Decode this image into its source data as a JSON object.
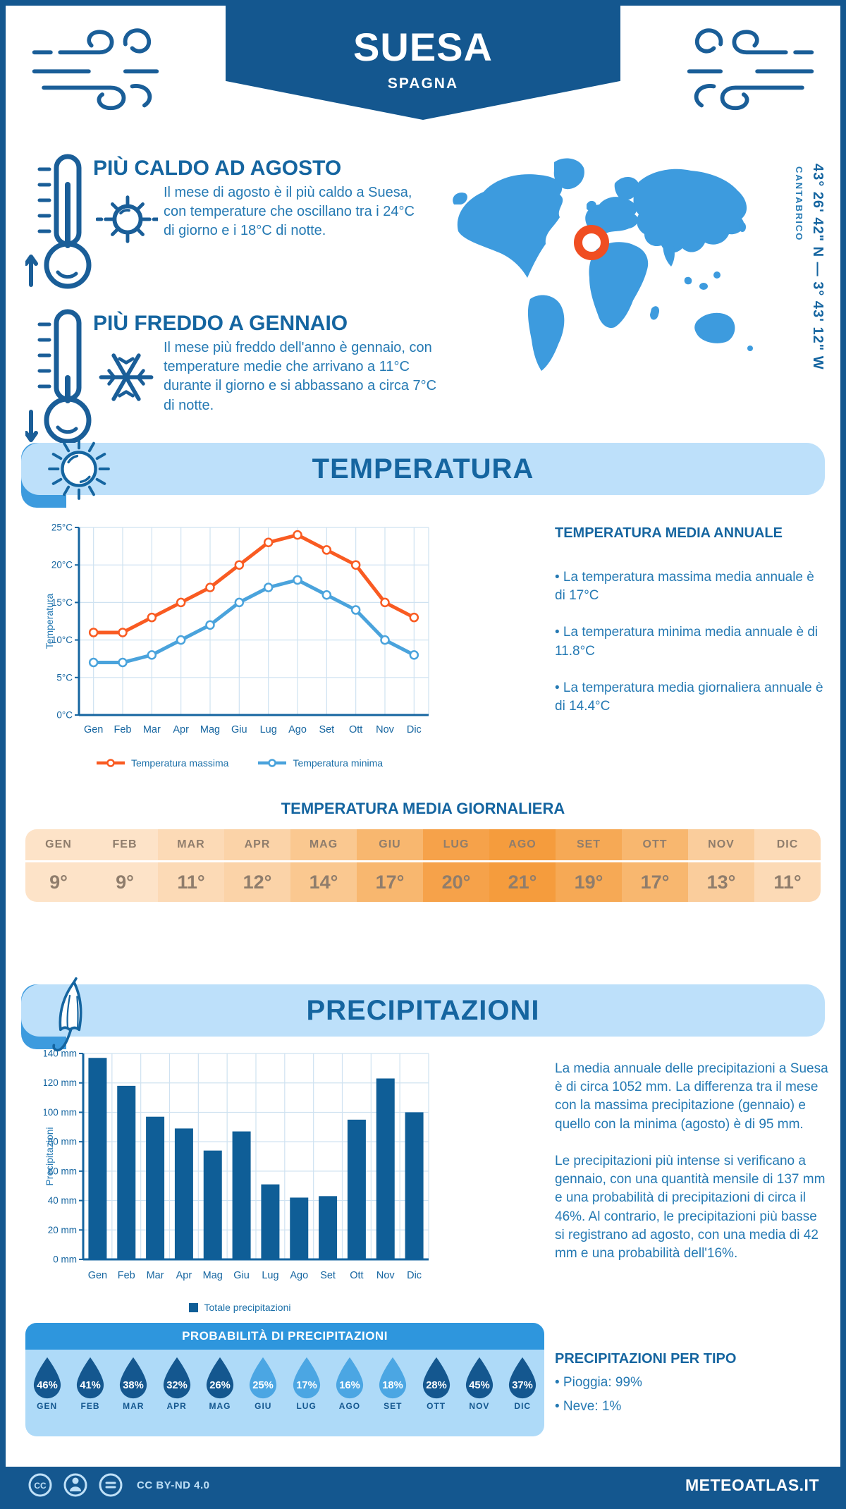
{
  "header": {
    "title": "SUESA",
    "subtitle": "SPAGNA"
  },
  "highlights": {
    "hot": {
      "title": "PIÙ CALDO AD AGOSTO",
      "text": "Il mese di agosto è il più caldo a Suesa, con temperature che oscillano tra i 24°C di giorno e i 18°C di notte."
    },
    "cold": {
      "title": "PIÙ FREDDO A GENNAIO",
      "text": "Il mese più freddo dell'anno è gennaio, con temperature medie che arrivano a 11°C durante il giorno e si abbassano a circa 7°C di notte."
    }
  },
  "map": {
    "region": "CANTABRICO",
    "coordinates": "43° 26' 42\" N — 3° 43' 12\" W",
    "land_color": "#3D9BDE",
    "marker_color": "#F04E22"
  },
  "temperature_section": {
    "banner": "TEMPERATURA",
    "annual_title": "TEMPERATURA MEDIA ANNUALE",
    "annual_bullets": [
      "• La temperatura massima media annuale è di 17°C",
      "• La temperatura minima media annuale è di 11.8°C",
      "• La temperatura media giornaliera annuale è di 14.4°C"
    ],
    "daily_title": "TEMPERATURA MEDIA GIORNALIERA",
    "daily_table": {
      "months": [
        "GEN",
        "FEB",
        "MAR",
        "APR",
        "MAG",
        "GIU",
        "LUG",
        "AGO",
        "SET",
        "OTT",
        "NOV",
        "DIC"
      ],
      "values": [
        "9°",
        "9°",
        "11°",
        "12°",
        "14°",
        "17°",
        "20°",
        "21°",
        "19°",
        "17°",
        "13°",
        "11°"
      ],
      "colors": [
        "#FDE3C8",
        "#FDE3C8",
        "#FCDAB6",
        "#FBD3A8",
        "#FAC890",
        "#F8B76F",
        "#F6A24A",
        "#F59C3D",
        "#F6A955",
        "#F8B76F",
        "#FACD9C",
        "#FCDAB6"
      ]
    }
  },
  "precipitation_section": {
    "banner": "PRECIPITAZIONI",
    "paragraphs": [
      "La media annuale delle precipitazioni a Suesa è di circa 1052 mm. La differenza tra il mese con la massima precipitazione (gennaio) e quello con la minima (agosto) è di 95 mm.",
      "Le precipitazioni più intense si verificano a gennaio, con una quantità mensile di 137 mm e una probabilità di precipitazioni di circa il 46%. Al contrario, le precipitazioni più basse si registrano ad agosto, con una media di 42 mm e una probabilità dell'16%."
    ],
    "probability": {
      "title": "PROBABILITÀ DI PRECIPITAZIONI",
      "months": [
        "GEN",
        "FEB",
        "MAR",
        "APR",
        "MAG",
        "GIU",
        "LUG",
        "AGO",
        "SET",
        "OTT",
        "NOV",
        "DIC"
      ],
      "values": [
        "46%",
        "41%",
        "38%",
        "32%",
        "26%",
        "25%",
        "17%",
        "16%",
        "18%",
        "28%",
        "45%",
        "37%"
      ],
      "variant": [
        "dark",
        "dark",
        "dark",
        "dark",
        "dark",
        "light",
        "light",
        "light",
        "light",
        "dark",
        "dark",
        "dark"
      ],
      "dark_color": "#14578F",
      "light_color": "#4BA6E3"
    },
    "types": {
      "title": "PRECIPITAZIONI PER TIPO",
      "bullets": [
        "• Pioggia: 99%",
        "• Neve: 1%"
      ]
    }
  },
  "chart_data": [
    {
      "type": "line",
      "title": "TEMPERATURA",
      "categories": [
        "Gen",
        "Feb",
        "Mar",
        "Apr",
        "Mag",
        "Giu",
        "Lug",
        "Ago",
        "Set",
        "Ott",
        "Nov",
        "Dic"
      ],
      "series": [
        {
          "name": "Temperatura massima",
          "color": "#F95B22",
          "values": [
            11,
            11,
            13,
            15,
            17,
            20,
            23,
            24,
            22,
            20,
            15,
            13
          ]
        },
        {
          "name": "Temperatura minima",
          "color": "#4AA3DC",
          "values": [
            7,
            7,
            8,
            10,
            12,
            15,
            17,
            18,
            16,
            14,
            10,
            8
          ]
        }
      ],
      "ylabel": "Temperatura",
      "ylim": [
        0,
        25
      ],
      "ytick_step": 5,
      "ytick_suffix": "°C",
      "grid": true,
      "legend_position": "bottom"
    },
    {
      "type": "bar",
      "title": "PRECIPITAZIONI",
      "categories": [
        "Gen",
        "Feb",
        "Mar",
        "Apr",
        "Mag",
        "Giu",
        "Lug",
        "Ago",
        "Set",
        "Ott",
        "Nov",
        "Dic"
      ],
      "series": [
        {
          "name": "Totale precipitazioni",
          "color": "#0F5E97",
          "values": [
            137,
            118,
            97,
            89,
            74,
            87,
            51,
            42,
            43,
            95,
            123,
            100
          ]
        }
      ],
      "ylabel": "Precipitazioni",
      "ylim": [
        0,
        140
      ],
      "ytick_step": 20,
      "ytick_suffix": " mm",
      "grid": true,
      "legend_position": "bottom"
    }
  ],
  "footer": {
    "license": "CC BY-ND 4.0",
    "brand": "METEOATLAS.IT"
  },
  "colors": {
    "primary_dark": "#14578F",
    "section_title": "#1565A0",
    "body_text": "#2479B3",
    "banner_light": "#BDE0FA",
    "banner_notch": "#3D9BDE",
    "axis": "#1565A0",
    "grid": "#CFE2F1",
    "table_text": "#8F7D6C"
  }
}
